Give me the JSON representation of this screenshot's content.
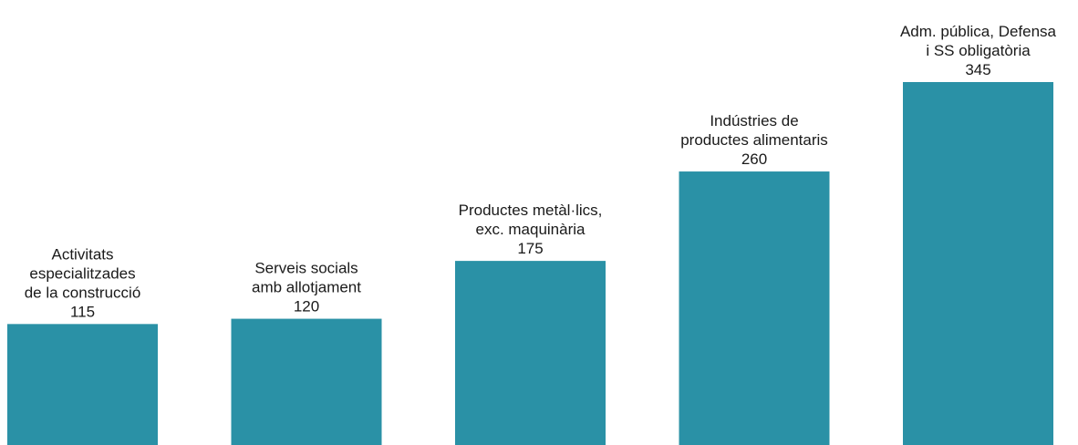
{
  "chart_data": {
    "type": "bar",
    "categories": [
      [
        "Activitats",
        "especialitzades",
        "de la construcció"
      ],
      [
        "Serveis socials",
        "amb allotjament"
      ],
      [
        "Productes metàl·lics,",
        "exc. maquinària"
      ],
      [
        "Indústries de",
        "productes alimentaris"
      ],
      [
        "Adm. pública, Defensa",
        "i SS obligatòria"
      ]
    ],
    "values": [
      115,
      120,
      175,
      260,
      345
    ],
    "value_labels": [
      "115",
      "120",
      "175",
      "260",
      "345"
    ],
    "ylim": [
      0,
      345
    ],
    "grid": false,
    "legend": "none",
    "bar_color": "#2a91a6"
  }
}
